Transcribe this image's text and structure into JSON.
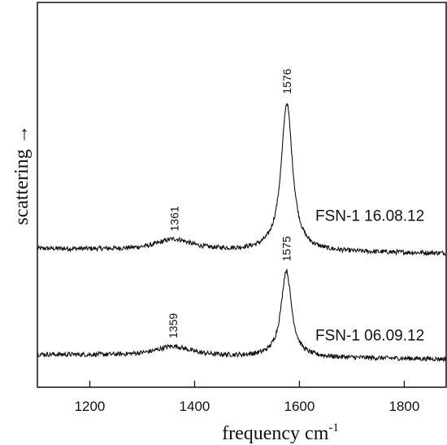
{
  "chart_data": {
    "type": "line",
    "title": "",
    "xlabel": "frequency cm",
    "xlabel_sup": "-1",
    "ylabel": "scattering →",
    "xlim": [
      1100,
      1880
    ],
    "x_ticks": [
      1200,
      1400,
      1600,
      1800
    ],
    "ylim": [
      0,
      1
    ],
    "grid": false,
    "legend": "none",
    "line_color": "#111111",
    "series": [
      {
        "name": "FSN-1 16.08.12",
        "baseline": 0.36,
        "noise": 0.006,
        "drift": -0.012,
        "peaks": [
          {
            "x": 1361,
            "height": 0.028,
            "width": 40,
            "label": "1361"
          },
          {
            "x": 1576,
            "height": 0.385,
            "width": 13,
            "label": "1576"
          }
        ]
      },
      {
        "name": "FSN-1 06.09.12",
        "baseline": 0.085,
        "noise": 0.006,
        "drift": -0.012,
        "peaks": [
          {
            "x": 1359,
            "height": 0.025,
            "width": 40,
            "label": "1359"
          },
          {
            "x": 1575,
            "height": 0.225,
            "width": 12,
            "label": "1575"
          }
        ]
      }
    ]
  }
}
